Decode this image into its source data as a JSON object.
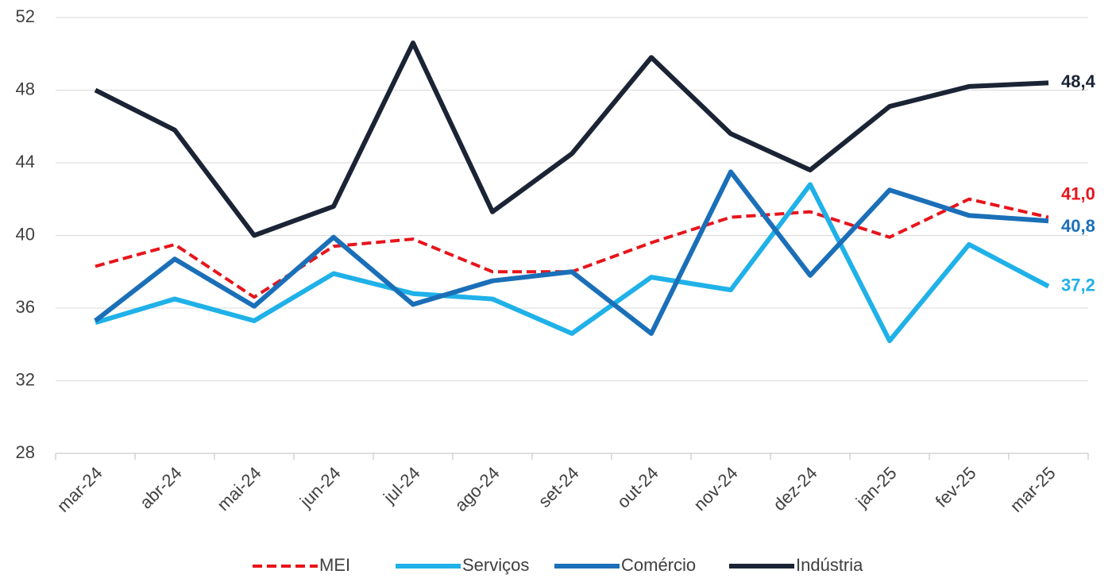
{
  "chart_data": {
    "type": "line",
    "categories": [
      "mar-24",
      "abr-24",
      "mai-24",
      "jun-24",
      "jul-24",
      "ago-24",
      "set-24",
      "out-24",
      "nov-24",
      "dez-24",
      "jan-25",
      "fev-25",
      "mar-25"
    ],
    "series": [
      {
        "name": "MEI",
        "color": "#e8141b",
        "style": "dashed",
        "values": [
          38.3,
          39.5,
          36.6,
          39.4,
          39.8,
          38.0,
          38.0,
          39.6,
          41.0,
          41.3,
          39.9,
          42.0,
          41.0
        ],
        "value_labels": [
          null,
          null,
          null,
          null,
          null,
          null,
          null,
          null,
          null,
          null,
          null,
          null,
          "41,0"
        ]
      },
      {
        "name": "Serviços",
        "color": "#1fb1e8",
        "style": "solid",
        "values": [
          35.2,
          36.5,
          35.3,
          37.9,
          36.8,
          36.5,
          34.6,
          37.7,
          37.0,
          42.8,
          34.2,
          39.5,
          37.2
        ],
        "value_labels": [
          null,
          null,
          null,
          null,
          null,
          null,
          null,
          null,
          null,
          null,
          null,
          null,
          "37,2"
        ]
      },
      {
        "name": "Comércio",
        "color": "#1a6fb8",
        "style": "solid",
        "values": [
          35.3,
          38.7,
          36.1,
          39.9,
          36.2,
          37.5,
          38.0,
          34.6,
          43.5,
          37.8,
          42.5,
          41.1,
          40.8
        ],
        "value_labels": [
          null,
          null,
          null,
          null,
          null,
          null,
          null,
          null,
          null,
          null,
          null,
          null,
          "40,8"
        ]
      },
      {
        "name": "Indústria",
        "color": "#1b2435",
        "style": "solid",
        "values": [
          48.0,
          45.8,
          40.0,
          41.6,
          50.6,
          41.3,
          44.5,
          49.8,
          45.6,
          43.6,
          47.1,
          48.2,
          48.4
        ],
        "value_labels": [
          null,
          null,
          null,
          null,
          null,
          null,
          null,
          null,
          null,
          null,
          null,
          null,
          "48,4"
        ]
      }
    ],
    "ylim": [
      28,
      52
    ],
    "yticks": [
      28,
      32,
      36,
      40,
      44,
      48,
      52
    ],
    "grid": true,
    "legend": "bottom"
  }
}
